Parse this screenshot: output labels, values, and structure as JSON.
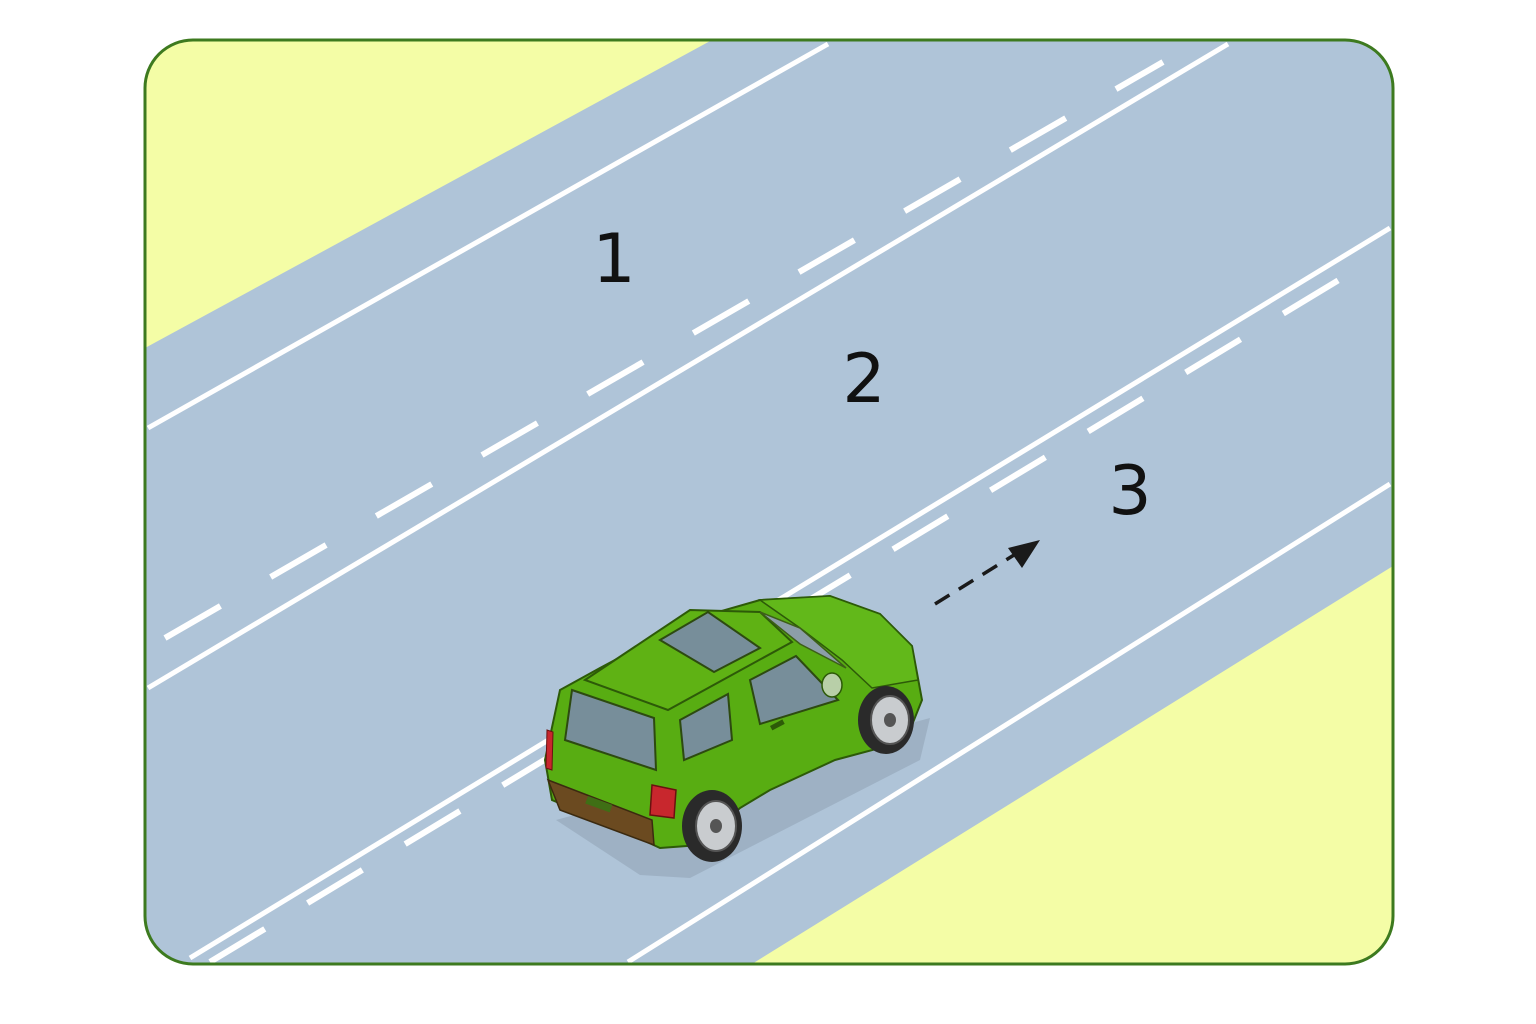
{
  "colors": {
    "frame_border": "#3d7a1f",
    "roadside": "#f4fda6",
    "road": "#afc4d8",
    "lane_markings": "#ffffff",
    "car_body": "#58ad12",
    "car_glass": "#778e9a",
    "arrow": "#1a1a1a"
  },
  "lanes": [
    {
      "label": "1"
    },
    {
      "label": "2"
    },
    {
      "label": "3"
    }
  ],
  "vehicle": {
    "type": "suv",
    "color": "green"
  },
  "arrow": {
    "style": "dashed",
    "direction": "toward lane 3"
  }
}
